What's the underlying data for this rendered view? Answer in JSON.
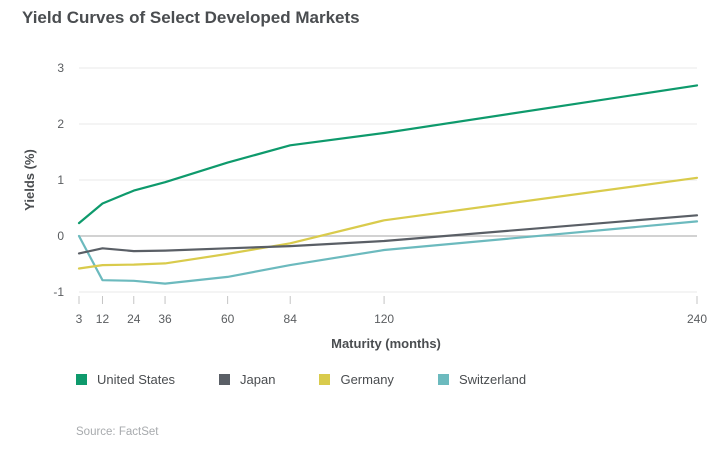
{
  "title": "Yield Curves of Select Developed Markets",
  "source": "Source: FactSet",
  "colors": {
    "grid": "#e8e8e8",
    "zero_line": "#c4c4c4",
    "text": "#4a4d50"
  },
  "chart_data": {
    "type": "line",
    "xlabel": "Maturity (months)",
    "ylabel": "Yields (%)",
    "x_ticks": [
      3,
      12,
      24,
      36,
      60,
      84,
      120,
      240
    ],
    "y_ticks": [
      -1,
      0,
      1,
      2,
      3
    ],
    "xlim": [
      3,
      240
    ],
    "ylim": [
      -1,
      3
    ],
    "grid": "horizontal",
    "legend_position": "bottom",
    "x": [
      3,
      12,
      24,
      36,
      60,
      84,
      120,
      240
    ],
    "series": [
      {
        "name": "United States",
        "color": "#0e9a6c",
        "values": [
          0.23,
          0.58,
          0.81,
          0.96,
          1.31,
          1.62,
          1.84,
          2.69
        ]
      },
      {
        "name": "Japan",
        "color": "#5a5f66",
        "values": [
          -0.31,
          -0.22,
          -0.27,
          -0.26,
          -0.22,
          -0.18,
          -0.09,
          0.37
        ]
      },
      {
        "name": "Germany",
        "color": "#d9cb4c",
        "values": [
          -0.58,
          -0.52,
          -0.51,
          -0.49,
          -0.32,
          -0.13,
          0.28,
          1.04
        ]
      },
      {
        "name": "Switzerland",
        "color": "#6cbabe",
        "values": [
          0.0,
          -0.79,
          -0.8,
          -0.85,
          -0.73,
          -0.52,
          -0.25,
          0.26
        ]
      }
    ]
  }
}
